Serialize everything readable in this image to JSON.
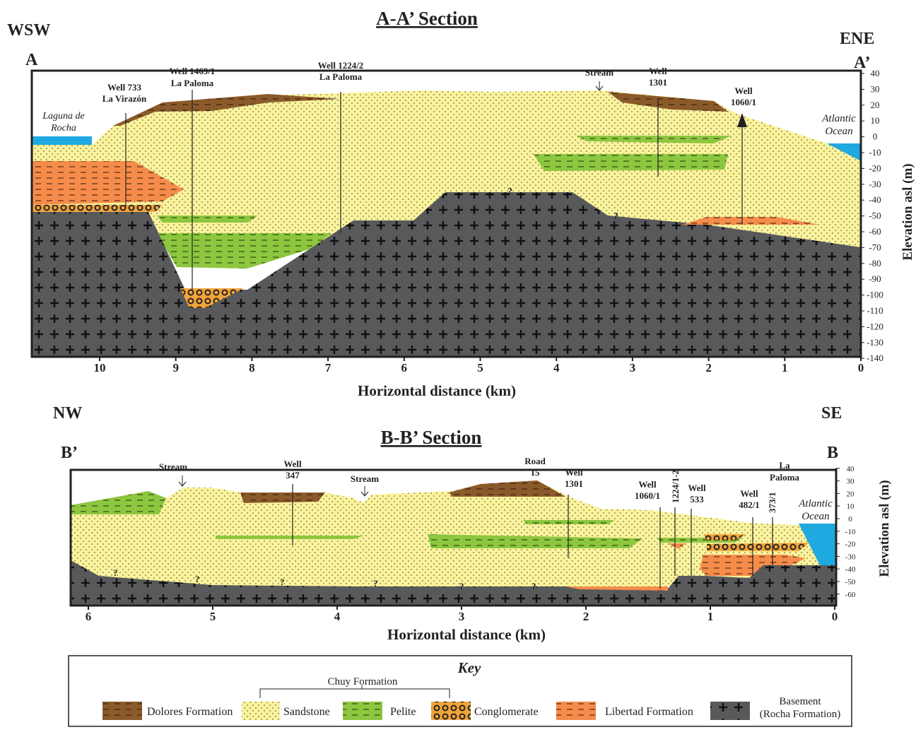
{
  "section_a": {
    "title": "A-A’ Section",
    "left_direction": "WSW",
    "right_direction": "ENE",
    "left_end": "A",
    "right_end": "A’",
    "x_axis_label": "Horizontal distance (km)",
    "y_axis_label": "Elevation asl (m)",
    "x_ticks": [
      10,
      9,
      8,
      7,
      6,
      5,
      4,
      3,
      2,
      1,
      0
    ],
    "y_ticks": [
      40,
      30,
      20,
      10,
      0,
      -10,
      -20,
      -30,
      -40,
      -50,
      -60,
      -70,
      -80,
      -90,
      -100,
      -110,
      -120,
      -130,
      -140
    ],
    "lagoon": [
      "Laguna de",
      "Rocha"
    ],
    "ocean": [
      "Atlantic",
      "Ocean"
    ],
    "well_733": [
      "Well 733",
      "La Virazón"
    ],
    "well_1469": [
      "Well 1469/1",
      "La Paloma"
    ],
    "well_1224": [
      "Well 1224/2",
      "La Paloma"
    ],
    "stream": "Stream",
    "well_1301": [
      "Well",
      "1301"
    ],
    "well_1060": [
      "Well",
      "1060/1"
    ],
    "uncertain": "?"
  },
  "section_b": {
    "title": "B-B’ Section",
    "left_direction": "NW",
    "right_direction": "SE",
    "left_end": "B’",
    "right_end": "B",
    "x_axis_label": "Horizontal distance (km)",
    "y_axis_label": "Elevation asl (m)",
    "x_ticks": [
      6,
      5,
      4,
      3,
      2,
      1,
      0
    ],
    "y_ticks": [
      40,
      30,
      20,
      10,
      0,
      -10,
      -20,
      -30,
      -40,
      -50,
      -60
    ],
    "stream_1": "Stream",
    "well_347": [
      "Well",
      "347"
    ],
    "stream_2": "Stream",
    "road": [
      "Road",
      "15"
    ],
    "well_1301": [
      "Well",
      "1301"
    ],
    "well_1060": [
      "Well",
      "1060/1"
    ],
    "well_1224": "1224/1-2",
    "well_533": [
      "Well",
      "533"
    ],
    "well_482": [
      "Well",
      "482/1"
    ],
    "well_373": "373/1",
    "town": [
      "La",
      "Paloma"
    ],
    "ocean": [
      "Atlantic",
      "Ocean"
    ],
    "uncertain": "?"
  },
  "key": {
    "title": "Key",
    "group": "Chuy Formation",
    "items": [
      "Dolores Formation",
      "Sandstone",
      "Pelite",
      "Conglomerate",
      "Libertad Formation"
    ],
    "basement": [
      "Basement",
      "(Rocha Formation)"
    ]
  }
}
